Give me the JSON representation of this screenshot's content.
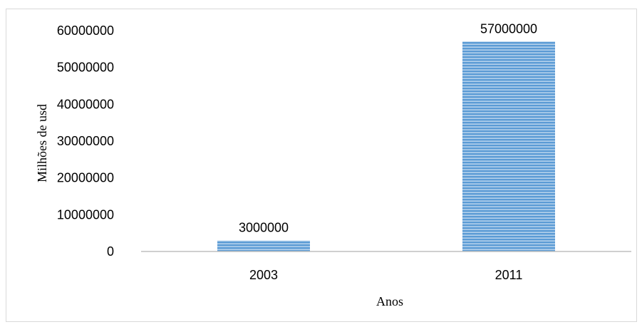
{
  "chart_data": {
    "type": "bar",
    "categories": [
      "2003",
      "2011"
    ],
    "values": [
      3000000,
      57000000
    ],
    "data_labels": [
      "3000000",
      "57000000"
    ],
    "title": "",
    "xlabel": "Anos",
    "ylabel": "Milhões de usd",
    "ylim": [
      0,
      60000000
    ],
    "yticks": [
      "0",
      "10000000",
      "20000000",
      "30000000",
      "40000000",
      "50000000",
      "60000000"
    ],
    "ytick_values": [
      0,
      10000000,
      20000000,
      30000000,
      40000000,
      50000000,
      60000000
    ],
    "grid": false,
    "legend": "none",
    "colors": {
      "bar_fill": "#5b9bd5",
      "bar_stripe": "#dce9f7",
      "axis": "#bfbfbf"
    }
  }
}
